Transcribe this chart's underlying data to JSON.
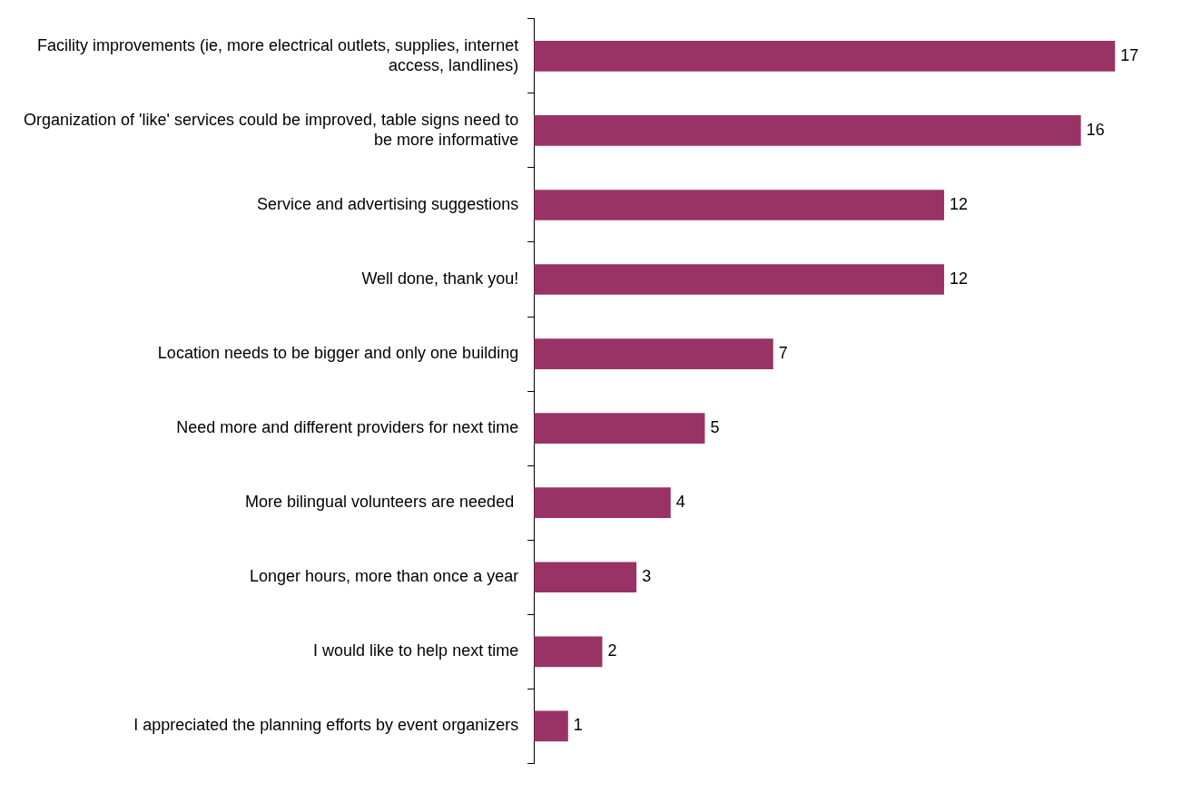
{
  "chart_data": {
    "type": "bar",
    "orientation": "horizontal",
    "data_labels": true,
    "legend": false,
    "grid": false,
    "color": "#993366",
    "categories": [
      "Facility improvements (ie, more electrical outlets, supplies, internet access, landlines)",
      "Organization of 'like' services could be improved, table signs need to be more informative",
      "Service and advertising suggestions",
      "Well done, thank you!",
      "Location needs to be bigger and only one building",
      "Need more and different providers for next time",
      "More bilingual volunteers are needed ",
      "Longer hours, more than once a year",
      "I would like to help next time",
      "I appreciated the planning efforts by event organizers"
    ],
    "values": [
      17,
      16,
      12,
      12,
      7,
      5,
      4,
      3,
      2,
      1
    ]
  }
}
